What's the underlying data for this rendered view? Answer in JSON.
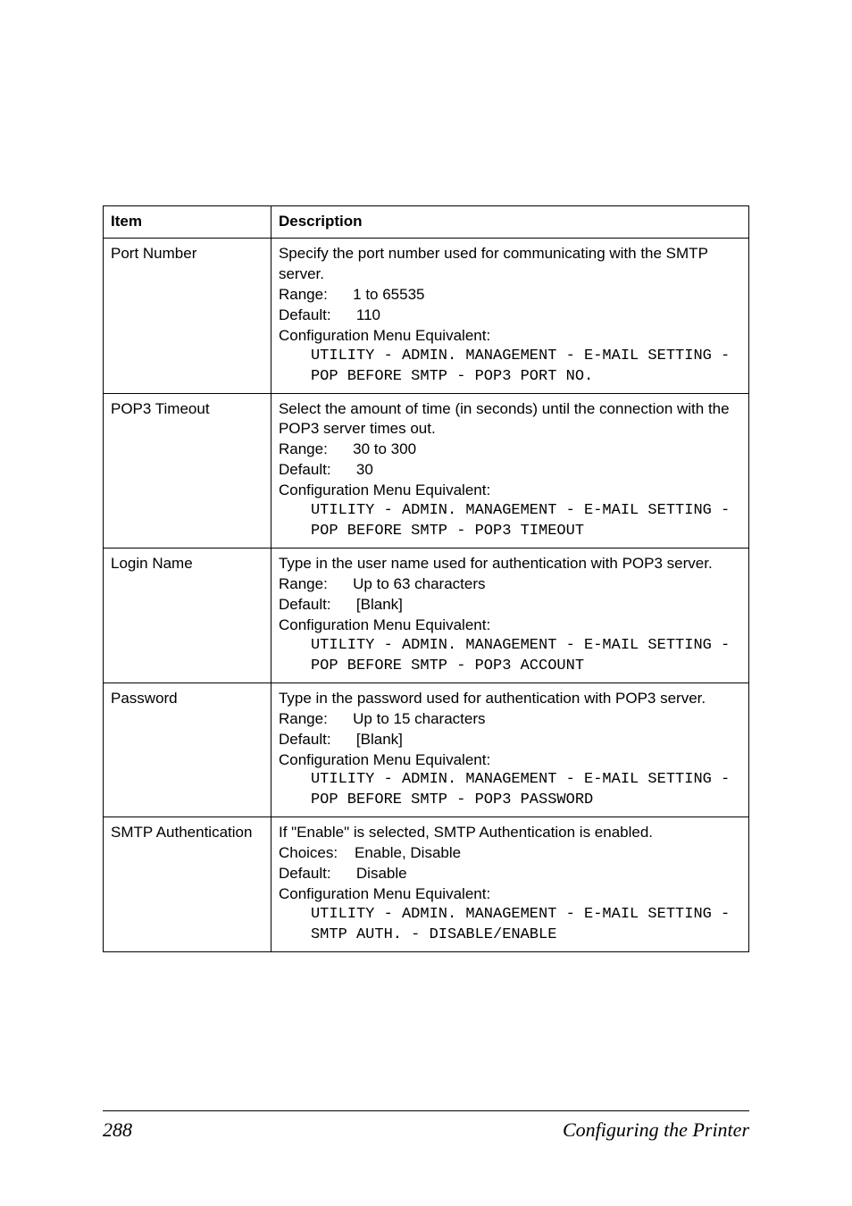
{
  "table": {
    "headers": {
      "item": "Item",
      "description": "Description"
    },
    "rows": [
      {
        "item": "Port Number",
        "desc_intro": "Specify the port number used for communicating with the SMTP server.",
        "range_label": "Range:",
        "range_value": "1 to 65535",
        "default_label": "Default:",
        "default_value": "110",
        "cfg_label": "Configuration Menu Equivalent:",
        "cfg_value": "UTILITY - ADMIN. MANAGEMENT - E-MAIL SETTING - POP BEFORE SMTP - POP3 PORT NO."
      },
      {
        "item": "POP3 Timeout",
        "desc_intro": "Select the amount of time (in seconds) until the connection with the POP3 server times out.",
        "range_label": "Range:",
        "range_value": "30 to 300",
        "default_label": "Default:",
        "default_value": "30",
        "cfg_label": "Configuration Menu Equivalent:",
        "cfg_value": "UTILITY - ADMIN. MANAGEMENT - E-MAIL SETTING - POP BEFORE SMTP - POP3 TIMEOUT"
      },
      {
        "item": "Login Name",
        "desc_intro": "Type in the user name used for authentication with POP3 server.",
        "range_label": "Range:",
        "range_value": "Up to 63 characters",
        "default_label": "Default:",
        "default_value": "[Blank]",
        "cfg_label": "Configuration Menu Equivalent:",
        "cfg_value": "UTILITY - ADMIN. MANAGEMENT - E-MAIL SETTING - POP BEFORE SMTP - POP3 ACCOUNT"
      },
      {
        "item": "Password",
        "desc_intro": "Type in the password used for authentication with POP3 server.",
        "range_label": "Range:",
        "range_value": "Up to 15 characters",
        "default_label": "Default:",
        "default_value": "[Blank]",
        "cfg_label": "Configuration Menu Equivalent:",
        "cfg_value": "UTILITY - ADMIN. MANAGEMENT - E-MAIL SETTING - POP BEFORE SMTP - POP3 PASSWORD"
      },
      {
        "item": "SMTP Authentication",
        "desc_intro": "If \"Enable\" is selected, SMTP Authentication is enabled.",
        "range_label": "Choices:",
        "range_value": "Enable, Disable",
        "default_label": "Default:",
        "default_value": "Disable",
        "cfg_label": "Configuration Menu Equivalent:",
        "cfg_value": "UTILITY - ADMIN. MANAGEMENT - E-MAIL SETTING - SMTP AUTH. - DISABLE/ENABLE"
      }
    ]
  },
  "footer": {
    "page_number": "288",
    "title": "Configuring the Printer"
  },
  "style": {
    "body_fontsize": 17,
    "mono_font": "Courier New",
    "footer_fontsize": 22,
    "border_color": "#000000",
    "background_color": "#ffffff"
  }
}
